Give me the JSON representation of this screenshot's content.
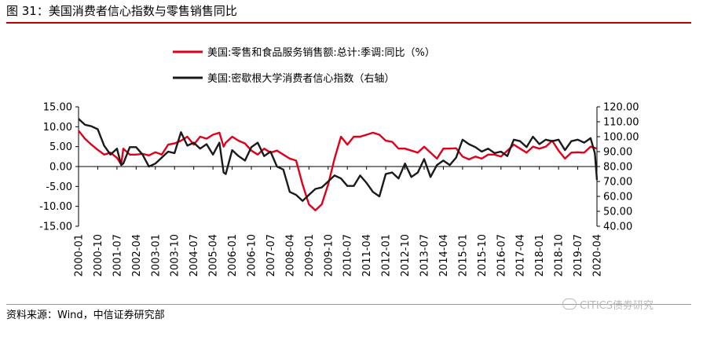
{
  "figure": {
    "title": "图 31：美国消费者信心指数与零售销售同比",
    "source": "资料来源：Wind，中信证券研究部",
    "watermark": "CITICS债券研究"
  },
  "chart_data": {
    "type": "line",
    "title": "",
    "legend_position": "top-center",
    "grid": false,
    "y_left": {
      "min": -15,
      "max": 15,
      "ticks": [
        "15.00",
        "10.00",
        "5.00",
        "0.00",
        "-5.00",
        "-10.00",
        "-15.00"
      ]
    },
    "y_right": {
      "min": 40,
      "max": 120,
      "ticks": [
        "120.00",
        "110.00",
        "100.00",
        "90.00",
        "80.00",
        "70.00",
        "60.00",
        "50.00",
        "40.00"
      ]
    },
    "x_ticks": [
      "2000-01",
      "2000-10",
      "2001-07",
      "2002-04",
      "2003-01",
      "2003-10",
      "2004-07",
      "2005-04",
      "2006-01",
      "2006-10",
      "2007-07",
      "2008-04",
      "2009-01",
      "2009-10",
      "2010-07",
      "2011-04",
      "2012-01",
      "2012-10",
      "2013-07",
      "2014-04",
      "2015-01",
      "2015-10",
      "2016-07",
      "2017-04",
      "2018-01",
      "2018-10",
      "2019-07",
      "2020-04"
    ],
    "series": [
      {
        "name": "美国:零售和食品服务销售额:总计:季调:同比（%）",
        "axis": "left",
        "color": "#e0001b",
        "points": [
          [
            "2000-01",
            9.0
          ],
          [
            "2000-04",
            7.0
          ],
          [
            "2000-07",
            5.5
          ],
          [
            "2000-10",
            4.2
          ],
          [
            "2001-01",
            3.0
          ],
          [
            "2001-04",
            3.5
          ],
          [
            "2001-07",
            2.2
          ],
          [
            "2001-09",
            0.5
          ],
          [
            "2001-10",
            4.5
          ],
          [
            "2002-01",
            3.0
          ],
          [
            "2002-04",
            3.0
          ],
          [
            "2002-07",
            3.2
          ],
          [
            "2002-10",
            2.8
          ],
          [
            "2003-01",
            3.6
          ],
          [
            "2003-04",
            3.0
          ],
          [
            "2003-07",
            5.5
          ],
          [
            "2003-10",
            5.8
          ],
          [
            "2004-01",
            6.5
          ],
          [
            "2004-04",
            7.5
          ],
          [
            "2004-07",
            5.5
          ],
          [
            "2004-10",
            7.5
          ],
          [
            "2005-01",
            7.0
          ],
          [
            "2005-04",
            8.0
          ],
          [
            "2005-07",
            8.5
          ],
          [
            "2005-09",
            5.0
          ],
          [
            "2005-10",
            6.0
          ],
          [
            "2006-01",
            7.5
          ],
          [
            "2006-04",
            6.5
          ],
          [
            "2006-07",
            5.8
          ],
          [
            "2006-10",
            4.0
          ],
          [
            "2007-01",
            3.0
          ],
          [
            "2007-04",
            4.5
          ],
          [
            "2007-07",
            3.5
          ],
          [
            "2007-10",
            4.0
          ],
          [
            "2008-01",
            3.0
          ],
          [
            "2008-04",
            2.0
          ],
          [
            "2008-07",
            1.5
          ],
          [
            "2008-10",
            -4.5
          ],
          [
            "2009-01",
            -9.5
          ],
          [
            "2009-04",
            -11.0
          ],
          [
            "2009-07",
            -9.5
          ],
          [
            "2009-10",
            -4.5
          ],
          [
            "2010-01",
            2.0
          ],
          [
            "2010-04",
            7.5
          ],
          [
            "2010-07",
            5.5
          ],
          [
            "2010-10",
            7.5
          ],
          [
            "2011-01",
            7.5
          ],
          [
            "2011-04",
            8.0
          ],
          [
            "2011-07",
            8.5
          ],
          [
            "2011-10",
            8.0
          ],
          [
            "2012-01",
            6.5
          ],
          [
            "2012-04",
            6.2
          ],
          [
            "2012-07",
            4.5
          ],
          [
            "2012-10",
            4.5
          ],
          [
            "2013-01",
            4.0
          ],
          [
            "2013-04",
            3.5
          ],
          [
            "2013-07",
            5.0
          ],
          [
            "2013-10",
            3.5
          ],
          [
            "2014-01",
            2.0
          ],
          [
            "2014-04",
            4.5
          ],
          [
            "2014-07",
            4.5
          ],
          [
            "2014-10",
            4.6
          ],
          [
            "2015-01",
            2.5
          ],
          [
            "2015-04",
            1.8
          ],
          [
            "2015-07",
            2.5
          ],
          [
            "2015-10",
            2.0
          ],
          [
            "2016-01",
            3.0
          ],
          [
            "2016-04",
            3.0
          ],
          [
            "2016-07",
            2.5
          ],
          [
            "2016-10",
            4.0
          ],
          [
            "2017-01",
            5.5
          ],
          [
            "2017-04",
            4.5
          ],
          [
            "2017-07",
            3.5
          ],
          [
            "2017-10",
            5.0
          ],
          [
            "2018-01",
            4.5
          ],
          [
            "2018-04",
            5.0
          ],
          [
            "2018-07",
            6.5
          ],
          [
            "2018-10",
            4.0
          ],
          [
            "2019-01",
            2.0
          ],
          [
            "2019-04",
            3.5
          ],
          [
            "2019-07",
            3.6
          ],
          [
            "2019-10",
            3.5
          ],
          [
            "2020-01",
            5.0
          ],
          [
            "2020-04",
            4.5
          ]
        ]
      },
      {
        "name": "美国:密歇根大学消费者信心指数（右轴）",
        "axis": "right",
        "color": "#1a1a1a",
        "points": [
          [
            "2000-01",
            112
          ],
          [
            "2000-04",
            108
          ],
          [
            "2000-07",
            107
          ],
          [
            "2000-10",
            105
          ],
          [
            "2001-01",
            94
          ],
          [
            "2001-04",
            88
          ],
          [
            "2001-07",
            92
          ],
          [
            "2001-09",
            81
          ],
          [
            "2001-10",
            82
          ],
          [
            "2002-01",
            93
          ],
          [
            "2002-04",
            93
          ],
          [
            "2002-07",
            88
          ],
          [
            "2002-10",
            80
          ],
          [
            "2003-01",
            82
          ],
          [
            "2003-04",
            86
          ],
          [
            "2003-07",
            90
          ],
          [
            "2003-10",
            89
          ],
          [
            "2004-01",
            103
          ],
          [
            "2004-04",
            94
          ],
          [
            "2004-07",
            96
          ],
          [
            "2004-10",
            92
          ],
          [
            "2005-01",
            95
          ],
          [
            "2005-04",
            88
          ],
          [
            "2005-07",
            96
          ],
          [
            "2005-09",
            76
          ],
          [
            "2005-10",
            75
          ],
          [
            "2006-01",
            91
          ],
          [
            "2006-04",
            87
          ],
          [
            "2006-07",
            84
          ],
          [
            "2006-10",
            93
          ],
          [
            "2007-01",
            96
          ],
          [
            "2007-04",
            87
          ],
          [
            "2007-07",
            90
          ],
          [
            "2007-10",
            80
          ],
          [
            "2008-01",
            78
          ],
          [
            "2008-04",
            63
          ],
          [
            "2008-07",
            61
          ],
          [
            "2008-10",
            57
          ],
          [
            "2009-01",
            61
          ],
          [
            "2009-04",
            65
          ],
          [
            "2009-07",
            66
          ],
          [
            "2009-10",
            70
          ],
          [
            "2010-01",
            74
          ],
          [
            "2010-04",
            72
          ],
          [
            "2010-07",
            67
          ],
          [
            "2010-10",
            67
          ],
          [
            "2011-01",
            74
          ],
          [
            "2011-04",
            69
          ],
          [
            "2011-07",
            63
          ],
          [
            "2011-10",
            60
          ],
          [
            "2012-01",
            75
          ],
          [
            "2012-04",
            76
          ],
          [
            "2012-07",
            72
          ],
          [
            "2012-10",
            82
          ],
          [
            "2013-01",
            73
          ],
          [
            "2013-04",
            76
          ],
          [
            "2013-07",
            85
          ],
          [
            "2013-10",
            73
          ],
          [
            "2014-01",
            81
          ],
          [
            "2014-04",
            84
          ],
          [
            "2014-07",
            81
          ],
          [
            "2014-10",
            86
          ],
          [
            "2015-01",
            98
          ],
          [
            "2015-04",
            95
          ],
          [
            "2015-07",
            93
          ],
          [
            "2015-10",
            90
          ],
          [
            "2016-01",
            92
          ],
          [
            "2016-04",
            89
          ],
          [
            "2016-07",
            90
          ],
          [
            "2016-10",
            87
          ],
          [
            "2017-01",
            98
          ],
          [
            "2017-04",
            97
          ],
          [
            "2017-07",
            93
          ],
          [
            "2017-10",
            100
          ],
          [
            "2018-01",
            95
          ],
          [
            "2018-04",
            98
          ],
          [
            "2018-07",
            97
          ],
          [
            "2018-10",
            98
          ],
          [
            "2019-01",
            91
          ],
          [
            "2019-04",
            97
          ],
          [
            "2019-07",
            98
          ],
          [
            "2019-10",
            96
          ],
          [
            "2020-01",
            99
          ],
          [
            "2020-03",
            89
          ],
          [
            "2020-04",
            71
          ]
        ]
      }
    ]
  }
}
